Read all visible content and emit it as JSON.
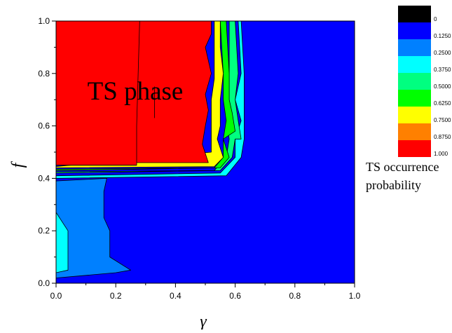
{
  "chart_data": {
    "type": "contour",
    "xlabel": "γ",
    "ylabel": "f",
    "xlim": [
      0,
      1
    ],
    "ylim": [
      0,
      1
    ],
    "x_ticks": [
      "0.0",
      "0.2",
      "0.4",
      "0.6",
      "0.8",
      "1.0"
    ],
    "y_ticks": [
      "0.0",
      "0.2",
      "0.4",
      "0.6",
      "0.8",
      "1.0"
    ],
    "annotation": "TS phase",
    "legend": {
      "title_lines": [
        "TS occurrence",
        "probability"
      ],
      "placement": "right",
      "levels": [
        {
          "label": "0",
          "color": "#000000"
        },
        {
          "label": "0.1250",
          "color": "#0000ff"
        },
        {
          "label": "0.2500",
          "color": "#0080ff"
        },
        {
          "label": "0.3750",
          "color": "#00ffff"
        },
        {
          "label": "0.5000",
          "color": "#00ff80"
        },
        {
          "label": "0.6250",
          "color": "#00ff00"
        },
        {
          "label": "0.7500",
          "color": "#ffff00"
        },
        {
          "label": "0.8750",
          "color": "#ff8000"
        },
        {
          "label": "1.000",
          "color": "#ff0000"
        }
      ]
    },
    "regions": [
      {
        "level": "0.1250",
        "color": "#0000ff",
        "points": [
          [
            0,
            0
          ],
          [
            1,
            0
          ],
          [
            1,
            1
          ],
          [
            0,
            1
          ]
        ]
      },
      {
        "level": "0.2500",
        "color": "#0080ff",
        "points": [
          [
            0,
            0.39
          ],
          [
            0.17,
            0.4
          ],
          [
            0.16,
            0.35
          ],
          [
            0.16,
            0.3
          ],
          [
            0.16,
            0.25
          ],
          [
            0.18,
            0.2
          ],
          [
            0.18,
            0.15
          ],
          [
            0.18,
            0.1
          ],
          [
            0.25,
            0.05
          ],
          [
            0.2,
            0.04
          ],
          [
            0.1,
            0.03
          ],
          [
            0,
            0.02
          ]
        ]
      },
      {
        "level": "0.3750",
        "color": "#00ffff",
        "points": [
          [
            0,
            0.27
          ],
          [
            0.04,
            0.2
          ],
          [
            0.04,
            0.15
          ],
          [
            0.04,
            0.1
          ],
          [
            0.04,
            0.05
          ],
          [
            0,
            0.04
          ]
        ]
      },
      {
        "level": "0.3750",
        "color": "#00ffff",
        "points": [
          [
            0,
            0.41
          ],
          [
            0.55,
            0.42
          ],
          [
            0.6,
            0.48
          ],
          [
            0.6,
            0.55
          ],
          [
            0.62,
            0.62
          ],
          [
            0.6,
            0.7
          ],
          [
            0.62,
            0.8
          ],
          [
            0.61,
            1.0
          ],
          [
            0.62,
            1.0
          ],
          [
            0.63,
            0.8
          ],
          [
            0.63,
            0.62
          ],
          [
            0.63,
            0.55
          ],
          [
            0.62,
            0.48
          ],
          [
            0.57,
            0.41
          ],
          [
            0,
            0.4
          ]
        ]
      },
      {
        "level": "0.5000",
        "color": "#00ff80",
        "points": [
          [
            0,
            0.42
          ],
          [
            0.55,
            0.43
          ],
          [
            0.59,
            0.48
          ],
          [
            0.6,
            0.55
          ],
          [
            0.62,
            0.55
          ],
          [
            0.61,
            0.62
          ],
          [
            0.6,
            0.7
          ],
          [
            0.61,
            0.8
          ],
          [
            0.6,
            1.0
          ],
          [
            0.58,
            1.0
          ],
          [
            0.58,
            0.8
          ],
          [
            0.57,
            0.62
          ],
          [
            0.58,
            0.55
          ],
          [
            0.57,
            0.48
          ],
          [
            0.53,
            0.43
          ],
          [
            0,
            0.425
          ]
        ]
      },
      {
        "level": "0.6250",
        "color": "#00ff00",
        "points": [
          [
            0,
            0.43
          ],
          [
            0.55,
            0.44
          ],
          [
            0.58,
            0.48
          ],
          [
            0.56,
            0.55
          ],
          [
            0.6,
            0.58
          ],
          [
            0.59,
            0.65
          ],
          [
            0.58,
            0.7
          ],
          [
            0.58,
            0.8
          ],
          [
            0.57,
            1.0
          ],
          [
            0.55,
            1.0
          ],
          [
            0.56,
            0.8
          ],
          [
            0.56,
            0.7
          ],
          [
            0.57,
            0.62
          ],
          [
            0.56,
            0.55
          ],
          [
            0.56,
            0.48
          ],
          [
            0.53,
            0.44
          ],
          [
            0,
            0.435
          ]
        ]
      },
      {
        "level": "0.7500",
        "color": "#ffff00",
        "points": [
          [
            0,
            0.44
          ],
          [
            0.53,
            0.445
          ],
          [
            0.56,
            0.48
          ],
          [
            0.54,
            0.55
          ],
          [
            0.55,
            0.6
          ],
          [
            0.55,
            0.66
          ],
          [
            0.55,
            0.7
          ],
          [
            0.56,
            0.8
          ],
          [
            0.55,
            0.9
          ],
          [
            0.55,
            1.0
          ],
          [
            0.53,
            1.0
          ],
          [
            0.53,
            0.9
          ],
          [
            0.53,
            0.78
          ],
          [
            0.52,
            0.7
          ],
          [
            0.52,
            0.6
          ],
          [
            0.52,
            0.5
          ],
          [
            0,
            0.445
          ]
        ]
      },
      {
        "level": "1.000",
        "color": "#ff0000",
        "points": [
          [
            0,
            0.45
          ],
          [
            0.27,
            0.45
          ],
          [
            0.27,
            0.46
          ],
          [
            0.51,
            0.46
          ],
          [
            0.49,
            0.53
          ],
          [
            0.5,
            0.6
          ],
          [
            0.51,
            0.66
          ],
          [
            0.5,
            0.72
          ],
          [
            0.52,
            0.8
          ],
          [
            0.5,
            0.9
          ],
          [
            0.52,
            0.95
          ],
          [
            0.52,
            1.0
          ],
          [
            0,
            1.0
          ]
        ]
      }
    ],
    "contour_lines": [
      {
        "points": [
          [
            0.28,
            1.0
          ],
          [
            0.27,
            0.6
          ],
          [
            0.27,
            0.46
          ]
        ]
      },
      {
        "points": [
          [
            0.33,
            0.63
          ],
          [
            0.33,
            0.7
          ],
          [
            0.33,
            0.75
          ]
        ]
      },
      {
        "points": [
          [
            0,
            0.45
          ],
          [
            0.27,
            0.45
          ]
        ]
      }
    ]
  }
}
